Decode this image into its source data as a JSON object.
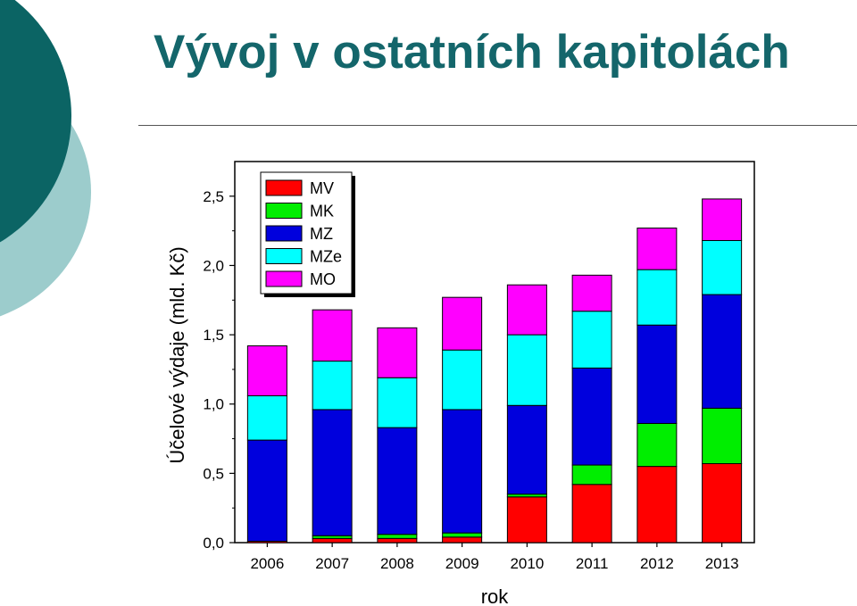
{
  "slide": {
    "title": "Vývoj v ostatních kapitolách"
  },
  "colors": {
    "accent_dark": "#0b6464",
    "accent_light": "#9ccccc",
    "title": "#14666b"
  },
  "chart_data": {
    "type": "bar",
    "stacked": true,
    "xlabel": "rok",
    "ylabel": "Účelové výdaje (mld. Kč)",
    "ylim": [
      0,
      2.75
    ],
    "yticks": [
      0,
      0.5,
      1.0,
      1.5,
      2.0,
      2.5
    ],
    "ytick_labels": [
      "0,0",
      "0,5",
      "1,0",
      "1,5",
      "2,0",
      "2,5"
    ],
    "categories": [
      "2006",
      "2007",
      "2008",
      "2009",
      "2010",
      "2011",
      "2012",
      "2013"
    ],
    "legend_position": "top-left",
    "grid": false,
    "series": [
      {
        "name": "MV",
        "color": "#ff0000",
        "values": [
          0.01,
          0.03,
          0.03,
          0.04,
          0.33,
          0.42,
          0.55,
          0.57
        ]
      },
      {
        "name": "MK",
        "color": "#00ee00",
        "values": [
          0.0,
          0.02,
          0.03,
          0.03,
          0.02,
          0.14,
          0.31,
          0.4
        ]
      },
      {
        "name": "MZ",
        "color": "#0000dd",
        "values": [
          0.73,
          0.91,
          0.77,
          0.89,
          0.64,
          0.7,
          0.71,
          0.82
        ]
      },
      {
        "name": "MZe",
        "color": "#00ffff",
        "values": [
          0.32,
          0.35,
          0.36,
          0.43,
          0.51,
          0.41,
          0.4,
          0.39
        ]
      },
      {
        "name": "MO",
        "color": "#ff00ff",
        "values": [
          0.36,
          0.37,
          0.36,
          0.38,
          0.36,
          0.26,
          0.3,
          0.3
        ]
      }
    ]
  }
}
